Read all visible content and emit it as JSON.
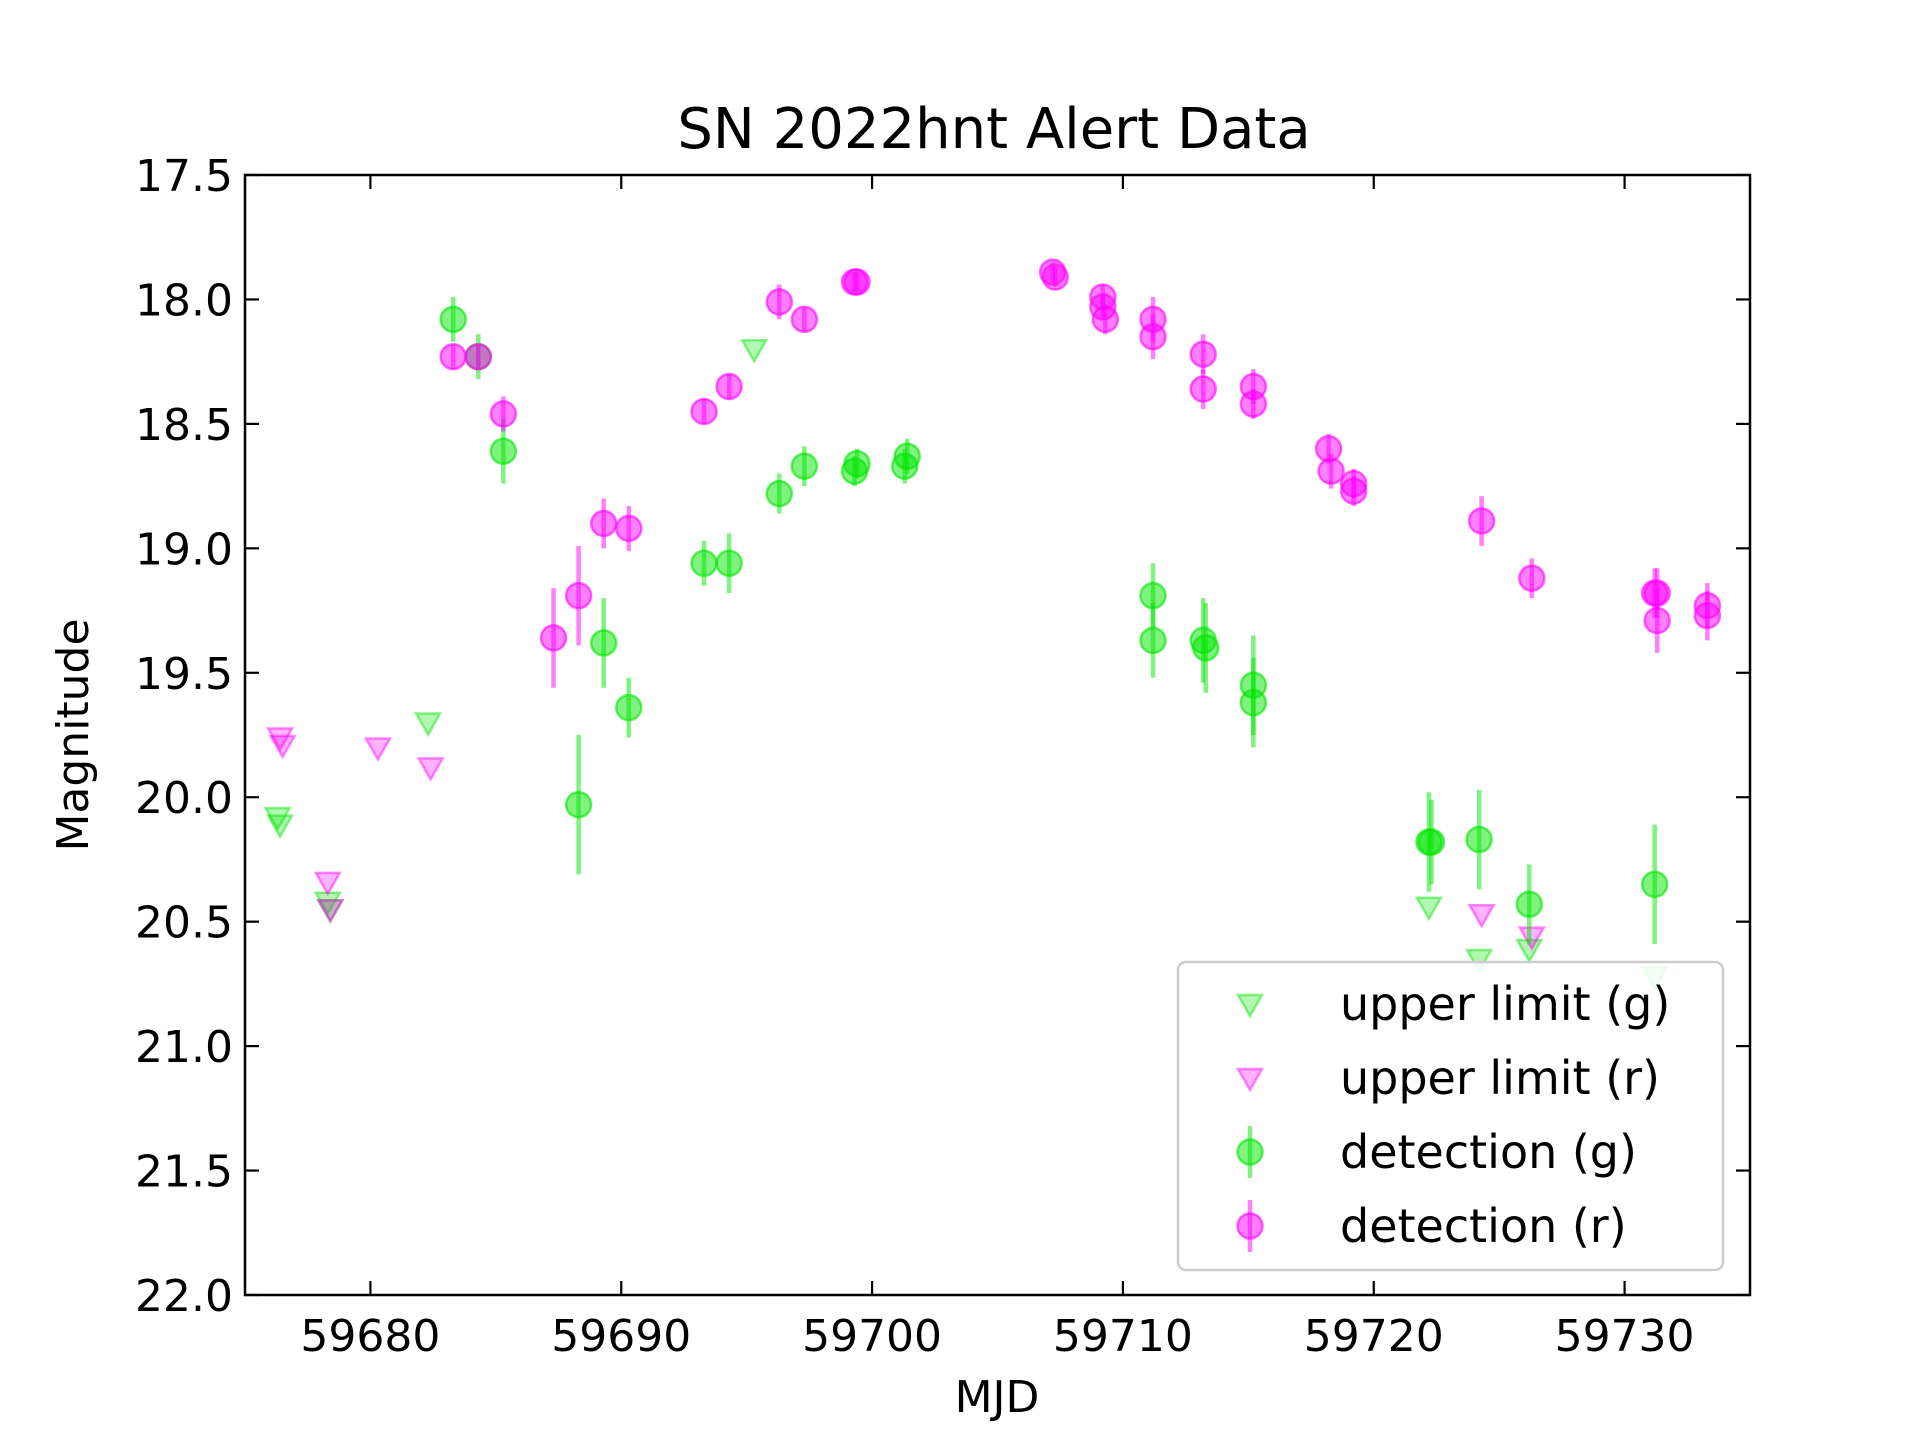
{
  "chart_data": {
    "type": "scatter",
    "title": "SN 2022hnt Alert Data",
    "xlabel": "MJD",
    "ylabel": "Magnitude",
    "xlim": [
      59675,
      59735
    ],
    "ylim": [
      22.0,
      17.5
    ],
    "y_inverted": true,
    "x_ticks": [
      "59680",
      "59690",
      "59700",
      "59710",
      "59720",
      "59730"
    ],
    "x_tick_values": [
      59680,
      59690,
      59700,
      59710,
      59720,
      59730
    ],
    "y_ticks": [
      "17.5",
      "18.0",
      "18.5",
      "19.0",
      "19.5",
      "20.0",
      "20.5",
      "21.0",
      "21.5",
      "22.0"
    ],
    "y_tick_values": [
      17.5,
      18.0,
      18.5,
      19.0,
      19.5,
      20.0,
      20.5,
      21.0,
      21.5,
      22.0
    ],
    "grid": false,
    "legend_position": "lower-right",
    "colors": {
      "g": "#00e600",
      "r": "#ff00ff"
    },
    "series": [
      {
        "name": "upper limit (g)",
        "band": "g",
        "kind": "upper-limit",
        "marker": "triangle-down",
        "points": [
          {
            "x": 59676.3,
            "y": 20.08
          },
          {
            "x": 59676.4,
            "y": 20.11
          },
          {
            "x": 59678.3,
            "y": 20.42
          },
          {
            "x": 59678.4,
            "y": 20.45
          },
          {
            "x": 59682.3,
            "y": 19.7
          },
          {
            "x": 59695.3,
            "y": 18.2
          },
          {
            "x": 59722.2,
            "y": 20.44
          },
          {
            "x": 59724.2,
            "y": 20.65
          },
          {
            "x": 59726.2,
            "y": 20.61
          },
          {
            "x": 59731.2,
            "y": 20.72
          }
        ]
      },
      {
        "name": "upper limit (r)",
        "band": "r",
        "kind": "upper-limit",
        "marker": "triangle-down",
        "points": [
          {
            "x": 59676.4,
            "y": 19.76
          },
          {
            "x": 59676.5,
            "y": 19.79
          },
          {
            "x": 59678.3,
            "y": 20.34
          },
          {
            "x": 59678.4,
            "y": 20.45
          },
          {
            "x": 59680.3,
            "y": 19.8
          },
          {
            "x": 59682.4,
            "y": 19.88
          },
          {
            "x": 59724.3,
            "y": 20.47
          },
          {
            "x": 59726.3,
            "y": 20.56
          }
        ]
      },
      {
        "name": "detection (g)",
        "band": "g",
        "kind": "detection",
        "marker": "circle",
        "points": [
          {
            "x": 59683.3,
            "y": 18.08,
            "err": 0.09
          },
          {
            "x": 59684.3,
            "y": 18.23,
            "err": 0.09
          },
          {
            "x": 59685.3,
            "y": 18.61,
            "err": 0.13
          },
          {
            "x": 59688.3,
            "y": 20.03,
            "err": 0.28
          },
          {
            "x": 59689.3,
            "y": 19.38,
            "err": 0.18
          },
          {
            "x": 59690.3,
            "y": 19.64,
            "err": 0.12
          },
          {
            "x": 59693.3,
            "y": 19.06,
            "err": 0.09
          },
          {
            "x": 59694.3,
            "y": 19.06,
            "err": 0.12
          },
          {
            "x": 59696.3,
            "y": 18.78,
            "err": 0.08
          },
          {
            "x": 59697.3,
            "y": 18.67,
            "err": 0.08
          },
          {
            "x": 59699.3,
            "y": 18.69,
            "err": 0.06
          },
          {
            "x": 59699.4,
            "y": 18.66,
            "err": 0.06
          },
          {
            "x": 59701.3,
            "y": 18.67,
            "err": 0.07
          },
          {
            "x": 59701.4,
            "y": 18.63,
            "err": 0.07
          },
          {
            "x": 59711.2,
            "y": 19.19,
            "err": 0.13
          },
          {
            "x": 59711.2,
            "y": 19.37,
            "err": 0.15
          },
          {
            "x": 59713.2,
            "y": 19.37,
            "err": 0.17
          },
          {
            "x": 59713.3,
            "y": 19.4,
            "err": 0.18
          },
          {
            "x": 59715.2,
            "y": 19.55,
            "err": 0.2
          },
          {
            "x": 59715.2,
            "y": 19.62,
            "err": 0.18
          },
          {
            "x": 59722.2,
            "y": 20.18,
            "err": 0.2
          },
          {
            "x": 59722.3,
            "y": 20.18,
            "err": 0.17
          },
          {
            "x": 59724.2,
            "y": 20.17,
            "err": 0.2
          },
          {
            "x": 59726.2,
            "y": 20.43,
            "err": 0.16
          },
          {
            "x": 59731.2,
            "y": 20.35,
            "err": 0.24
          }
        ]
      },
      {
        "name": "detection (r)",
        "band": "r",
        "kind": "detection",
        "marker": "circle",
        "points": [
          {
            "x": 59683.3,
            "y": 18.23,
            "err": 0.05
          },
          {
            "x": 59684.3,
            "y": 18.23,
            "err": 0.05
          },
          {
            "x": 59685.3,
            "y": 18.46,
            "err": 0.07
          },
          {
            "x": 59687.3,
            "y": 19.36,
            "err": 0.2
          },
          {
            "x": 59688.3,
            "y": 19.19,
            "err": 0.2
          },
          {
            "x": 59689.3,
            "y": 18.9,
            "err": 0.1
          },
          {
            "x": 59690.3,
            "y": 18.92,
            "err": 0.09
          },
          {
            "x": 59693.3,
            "y": 18.45,
            "err": 0.05
          },
          {
            "x": 59694.3,
            "y": 18.35,
            "err": 0.05
          },
          {
            "x": 59696.3,
            "y": 18.01,
            "err": 0.07
          },
          {
            "x": 59697.3,
            "y": 18.08,
            "err": 0.05
          },
          {
            "x": 59699.3,
            "y": 17.93,
            "err": 0.04
          },
          {
            "x": 59699.4,
            "y": 17.93,
            "err": 0.04
          },
          {
            "x": 59707.2,
            "y": 17.89,
            "err": 0.04
          },
          {
            "x": 59707.3,
            "y": 17.91,
            "err": 0.04
          },
          {
            "x": 59709.2,
            "y": 17.99,
            "err": 0.05
          },
          {
            "x": 59709.2,
            "y": 18.03,
            "err": 0.05
          },
          {
            "x": 59709.3,
            "y": 18.08,
            "err": 0.06
          },
          {
            "x": 59711.2,
            "y": 18.08,
            "err": 0.09
          },
          {
            "x": 59711.2,
            "y": 18.15,
            "err": 0.09
          },
          {
            "x": 59713.2,
            "y": 18.22,
            "err": 0.08
          },
          {
            "x": 59713.2,
            "y": 18.36,
            "err": 0.08
          },
          {
            "x": 59715.2,
            "y": 18.35,
            "err": 0.07
          },
          {
            "x": 59715.2,
            "y": 18.42,
            "err": 0.06
          },
          {
            "x": 59718.2,
            "y": 18.6,
            "err": 0.06
          },
          {
            "x": 59718.3,
            "y": 18.69,
            "err": 0.07
          },
          {
            "x": 59719.2,
            "y": 18.74,
            "err": 0.06
          },
          {
            "x": 59719.2,
            "y": 18.77,
            "err": 0.06
          },
          {
            "x": 59724.3,
            "y": 18.89,
            "err": 0.1
          },
          {
            "x": 59726.3,
            "y": 19.12,
            "err": 0.08
          },
          {
            "x": 59731.2,
            "y": 19.18,
            "err": 0.1
          },
          {
            "x": 59731.3,
            "y": 19.18,
            "err": 0.1
          },
          {
            "x": 59731.3,
            "y": 19.29,
            "err": 0.13
          },
          {
            "x": 59733.3,
            "y": 19.23,
            "err": 0.09
          },
          {
            "x": 59733.3,
            "y": 19.27,
            "err": 0.1
          }
        ]
      }
    ]
  }
}
